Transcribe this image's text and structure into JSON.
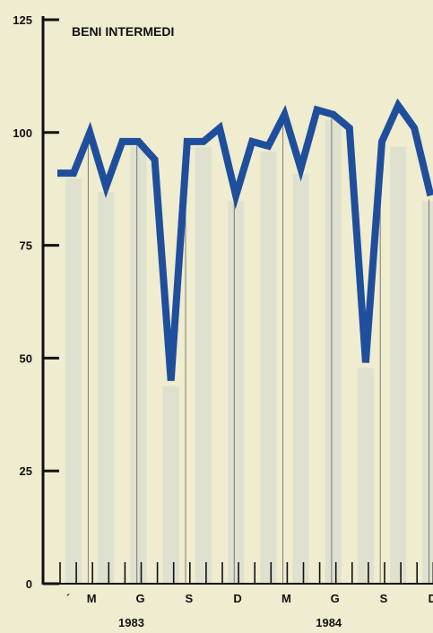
{
  "chart_data": {
    "type": "line",
    "title": "BENI INTERMEDI",
    "xlabel": "",
    "ylabel": "",
    "ylim": [
      0,
      125
    ],
    "yticks": [
      0,
      25,
      50,
      75,
      100,
      125
    ],
    "x": [
      "1983-01",
      "1983-02",
      "1983-03",
      "1983-04",
      "1983-05",
      "1983-06",
      "1983-07",
      "1983-08",
      "1983-09",
      "1983-10",
      "1983-11",
      "1983-12",
      "1984-01",
      "1984-02",
      "1984-03",
      "1984-04",
      "1984-05",
      "1984-06",
      "1984-07",
      "1984-08",
      "1984-09",
      "1984-10",
      "1984-11",
      "1984-12"
    ],
    "x_tick_labels": [
      "´",
      "M",
      "G",
      "S",
      "D",
      "M",
      "G",
      "S",
      "D"
    ],
    "year_labels": [
      "1983",
      "1984"
    ],
    "series": [
      {
        "values": [
          91,
          91,
          100,
          88,
          98,
          98,
          94,
          45,
          98,
          98,
          101,
          86,
          98,
          97,
          104,
          92,
          105,
          104,
          101,
          49,
          98,
          106,
          101,
          86
        ],
        "color": "#1f4e9c"
      }
    ],
    "grid": false,
    "colors": {
      "background": "#efeccf",
      "bars": "#d2d8cf",
      "axis": "#111111",
      "line": "#1f4e9c"
    }
  }
}
